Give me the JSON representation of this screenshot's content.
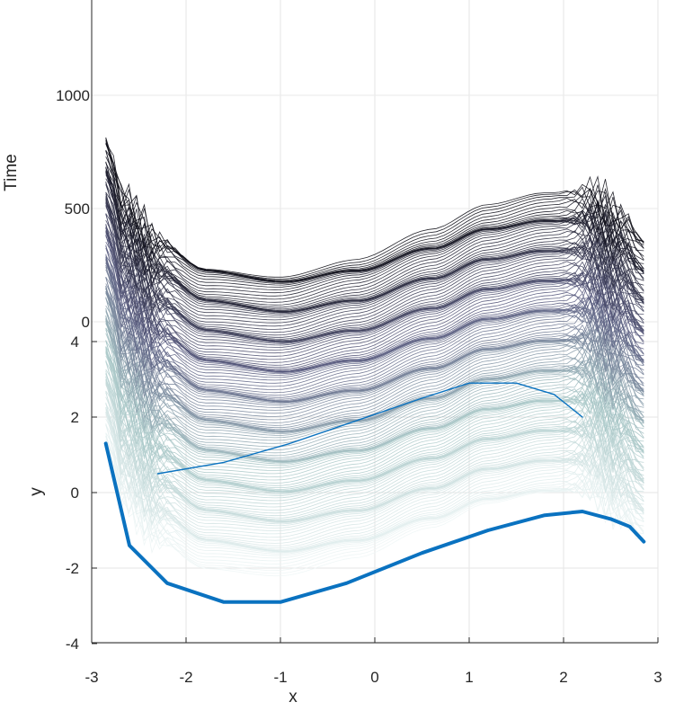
{
  "chart_data": {
    "type": "line",
    "view": "3d-waterfall",
    "xlabel": "x",
    "ylabel": "y",
    "zlabel": "Time",
    "xlim": [
      -3,
      3
    ],
    "ylim": [
      -4,
      4
    ],
    "zlim": [
      0,
      1000
    ],
    "x_ticks": [
      "-3",
      "-2",
      "-1",
      "0",
      "1",
      "2",
      "3"
    ],
    "y_ticks": [
      "-4",
      "-2",
      "0",
      "2",
      "4"
    ],
    "z_ticks": [
      "0",
      "500",
      "1000"
    ],
    "grid": true,
    "colormap": [
      "#eef6f6",
      "#aac8c8",
      "#5a5c80",
      "#0c0c14"
    ],
    "series": [
      {
        "kind": "phase-trajectory",
        "color": "#0a72c0",
        "x": [
          -2.85,
          -2.6,
          -2.2,
          -1.6,
          -1.0,
          -0.3,
          0.5,
          1.2,
          1.8,
          2.2,
          2.5,
          2.7,
          2.85
        ],
        "y": [
          1.3,
          -1.4,
          -2.4,
          -2.9,
          -2.9,
          -2.4,
          -1.6,
          -1.0,
          -0.6,
          -0.5,
          -0.7,
          -0.9,
          -1.3
        ]
      },
      {
        "kind": "phase-trajectory",
        "color": "#0a72c0",
        "x": [
          -2.3,
          -1.6,
          -0.9,
          -0.2,
          0.5,
          1.0,
          1.5,
          1.9,
          2.2
        ],
        "y": [
          0.5,
          0.8,
          1.3,
          1.9,
          2.5,
          2.9,
          2.9,
          2.6,
          2.0
        ]
      }
    ],
    "waterfall_profile": {
      "x": [
        -2.85,
        -2.65,
        -2.3,
        -1.8,
        -1.0,
        -0.2,
        0.6,
        1.2,
        1.8,
        2.3,
        2.6,
        2.85
      ],
      "y": [
        1.4,
        -0.2,
        -1.2,
        -1.9,
        -2.1,
        -1.7,
        -1.0,
        -0.4,
        -0.1,
        0.0,
        -0.6,
        -1.3
      ]
    },
    "waterfall_count": 180
  }
}
